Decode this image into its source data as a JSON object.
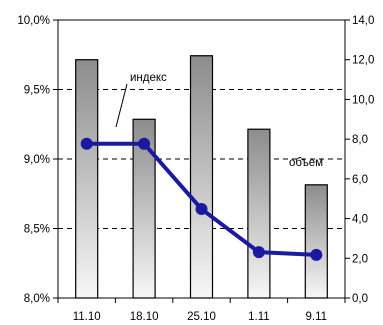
{
  "chart_data": {
    "type": "bar",
    "categories": [
      "11.10",
      "18.10",
      "25.10",
      "1.11",
      "9.11"
    ],
    "series": [
      {
        "name": "объем",
        "type": "bar",
        "axis": "right",
        "values": [
          12.0,
          9.0,
          12.2,
          8.5,
          5.7
        ]
      },
      {
        "name": "индекс",
        "type": "line",
        "axis": "left",
        "values": [
          9.11,
          9.11,
          8.64,
          8.33,
          8.31
        ]
      }
    ],
    "left_axis": {
      "ylim": [
        8.0,
        10.0
      ],
      "ticks": [
        "8,0%",
        "8,5%",
        "9,0%",
        "9,5%",
        "10,0%"
      ]
    },
    "right_axis": {
      "ylim": [
        0,
        14
      ],
      "ticks": [
        "0,0",
        "2,0",
        "4,0",
        "6,0",
        "8,0",
        "10,0",
        "12,0",
        "14,0"
      ]
    },
    "gridlines": "horizontal-dashed",
    "colors": {
      "bar_top": "#8c8c8c",
      "bar_bottom": "#f7f7f7",
      "line": "#1a1aa0"
    }
  }
}
